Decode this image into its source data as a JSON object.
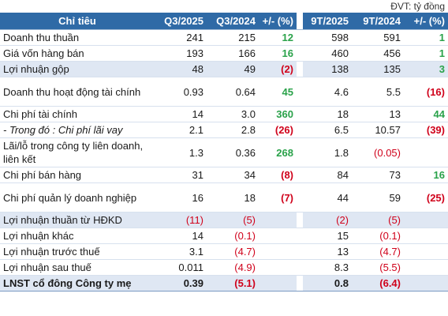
{
  "unit_note": "ĐVT: tỷ đồng",
  "headers": {
    "label": "Chỉ tiêu",
    "q3_2025": "Q3/2025",
    "q3_2024": "Q3/2024",
    "chg_q": "+/- (%)",
    "ytd_2025": "9T/2025",
    "ytd_2024": "9T/2024",
    "chg_ytd": "+/- (%)"
  },
  "rows": [
    {
      "label": "Doanh thu thuần",
      "q3_2025": "241",
      "q3_2024": "215",
      "chg_q": "12",
      "ytd_2025": "598",
      "ytd_2024": "591",
      "chg_ytd": "1"
    },
    {
      "label": "Giá vốn hàng bán",
      "q3_2025": "193",
      "q3_2024": "166",
      "chg_q": "16",
      "ytd_2025": "460",
      "ytd_2024": "456",
      "chg_ytd": "1"
    },
    {
      "label": "Lợi nhuận gộp",
      "q3_2025": "48",
      "q3_2024": "49",
      "chg_q": "(2)",
      "ytd_2025": "138",
      "ytd_2024": "135",
      "chg_ytd": "3"
    },
    {
      "label": "Doanh thu hoạt động tài chính",
      "q3_2025": "0.93",
      "q3_2024": "0.64",
      "chg_q": "45",
      "ytd_2025": "4.6",
      "ytd_2024": "5.5",
      "chg_ytd": "(16)"
    },
    {
      "label": "Chi phí tài chính",
      "q3_2025": "14",
      "q3_2024": "3.0",
      "chg_q": "360",
      "ytd_2025": "18",
      "ytd_2024": "13",
      "chg_ytd": "44"
    },
    {
      "label": "- Trong đó : Chi phí lãi vay",
      "q3_2025": "2.1",
      "q3_2024": "2.8",
      "chg_q": "(26)",
      "ytd_2025": "6.5",
      "ytd_2024": "10.57",
      "chg_ytd": "(39)"
    },
    {
      "label": "Lãi/lỗ trong công ty liên doanh, liên kết",
      "q3_2025": "1.3",
      "q3_2024": "0.36",
      "chg_q": "268",
      "ytd_2025": "1.8",
      "ytd_2024": "(0.05)",
      "chg_ytd": ""
    },
    {
      "label": "Chi phí bán hàng",
      "q3_2025": "31",
      "q3_2024": "34",
      "chg_q": "(8)",
      "ytd_2025": "84",
      "ytd_2024": "73",
      "chg_ytd": "16"
    },
    {
      "label": "Chi phí quản lý doanh nghiệp",
      "q3_2025": "16",
      "q3_2024": "18",
      "chg_q": "(7)",
      "ytd_2025": "44",
      "ytd_2024": "59",
      "chg_ytd": "(25)"
    },
    {
      "label": "Lợi nhuận thuần từ HĐKD",
      "q3_2025": "(11)",
      "q3_2024": "(5)",
      "chg_q": "",
      "ytd_2025": "(2)",
      "ytd_2024": "(5)",
      "chg_ytd": ""
    },
    {
      "label": "Lợi nhuận khác",
      "q3_2025": "14",
      "q3_2024": "(0.1)",
      "chg_q": "",
      "ytd_2025": "15",
      "ytd_2024": "(0.1)",
      "chg_ytd": ""
    },
    {
      "label": "Lợi nhuận trước thuế",
      "q3_2025": "3.1",
      "q3_2024": "(4.7)",
      "chg_q": "",
      "ytd_2025": "13",
      "ytd_2024": "(4.7)",
      "chg_ytd": ""
    },
    {
      "label": "Lợi nhuận sau thuế",
      "q3_2025": "0.011",
      "q3_2024": "(4.9)",
      "chg_q": "",
      "ytd_2025": "8.3",
      "ytd_2024": "(5.5)",
      "chg_ytd": ""
    },
    {
      "label": "LNST cổ đông Công ty mẹ",
      "q3_2025": "0.39",
      "q3_2024": "(5.1)",
      "chg_q": "",
      "ytd_2025": "0.8",
      "ytd_2024": "(6.4)",
      "chg_ytd": ""
    }
  ],
  "colors": {
    "header_bg": "#2f6aa6",
    "highlight_row_bg": "#dfe7f3",
    "positive": "#2aa24a",
    "negative": "#d0021b"
  }
}
